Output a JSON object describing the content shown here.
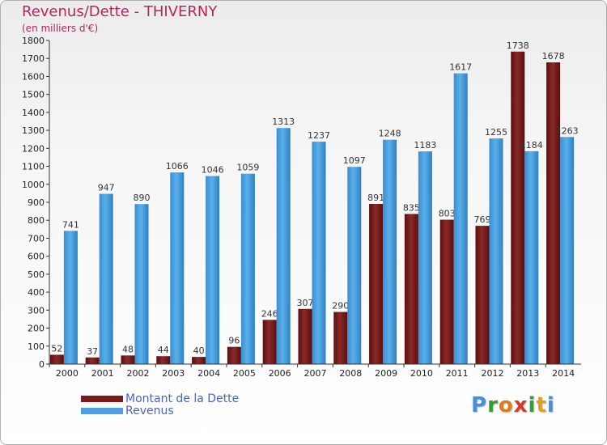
{
  "title": "Revenus/Dette - THIVERNY",
  "subtitle": "(en milliers d'€)",
  "logo": {
    "text": "Proxiti",
    "letters": [
      "P",
      "r",
      "o",
      "x",
      "i",
      "t",
      "i"
    ],
    "colors": [
      "#4a8fd6",
      "#3a9a3a",
      "#e07a1a",
      "#d63a2a",
      "#3a9a3a",
      "#e0a01a",
      "#4a8fd6"
    ]
  },
  "colors": {
    "dette": "#7a1a1a",
    "revenus": "#4aa0e0",
    "title": "#b5265a"
  },
  "chart_data": {
    "type": "bar",
    "categories": [
      "2000",
      "2001",
      "2002",
      "2003",
      "2004",
      "2005",
      "2006",
      "2007",
      "2008",
      "2009",
      "2010",
      "2011",
      "2012",
      "2013",
      "2014"
    ],
    "series": [
      {
        "name": "Montant de la Dette",
        "values": [
          52,
          37,
          48,
          44,
          40,
          96,
          246,
          307,
          290,
          891,
          835,
          803,
          769,
          1738,
          1678
        ]
      },
      {
        "name": "Revenus",
        "values": [
          741,
          947,
          890,
          1066,
          1046,
          1059,
          1313,
          1237,
          1097,
          1248,
          1183,
          1617,
          1255,
          1184,
          1263
        ]
      }
    ],
    "yticks": [
      0,
      100,
      200,
      300,
      400,
      500,
      600,
      700,
      800,
      900,
      1000,
      1100,
      1200,
      1300,
      1400,
      1500,
      1600,
      1700,
      1800
    ],
    "ylim": [
      0,
      1800
    ],
    "grid": false,
    "legend": "bottom-left"
  }
}
